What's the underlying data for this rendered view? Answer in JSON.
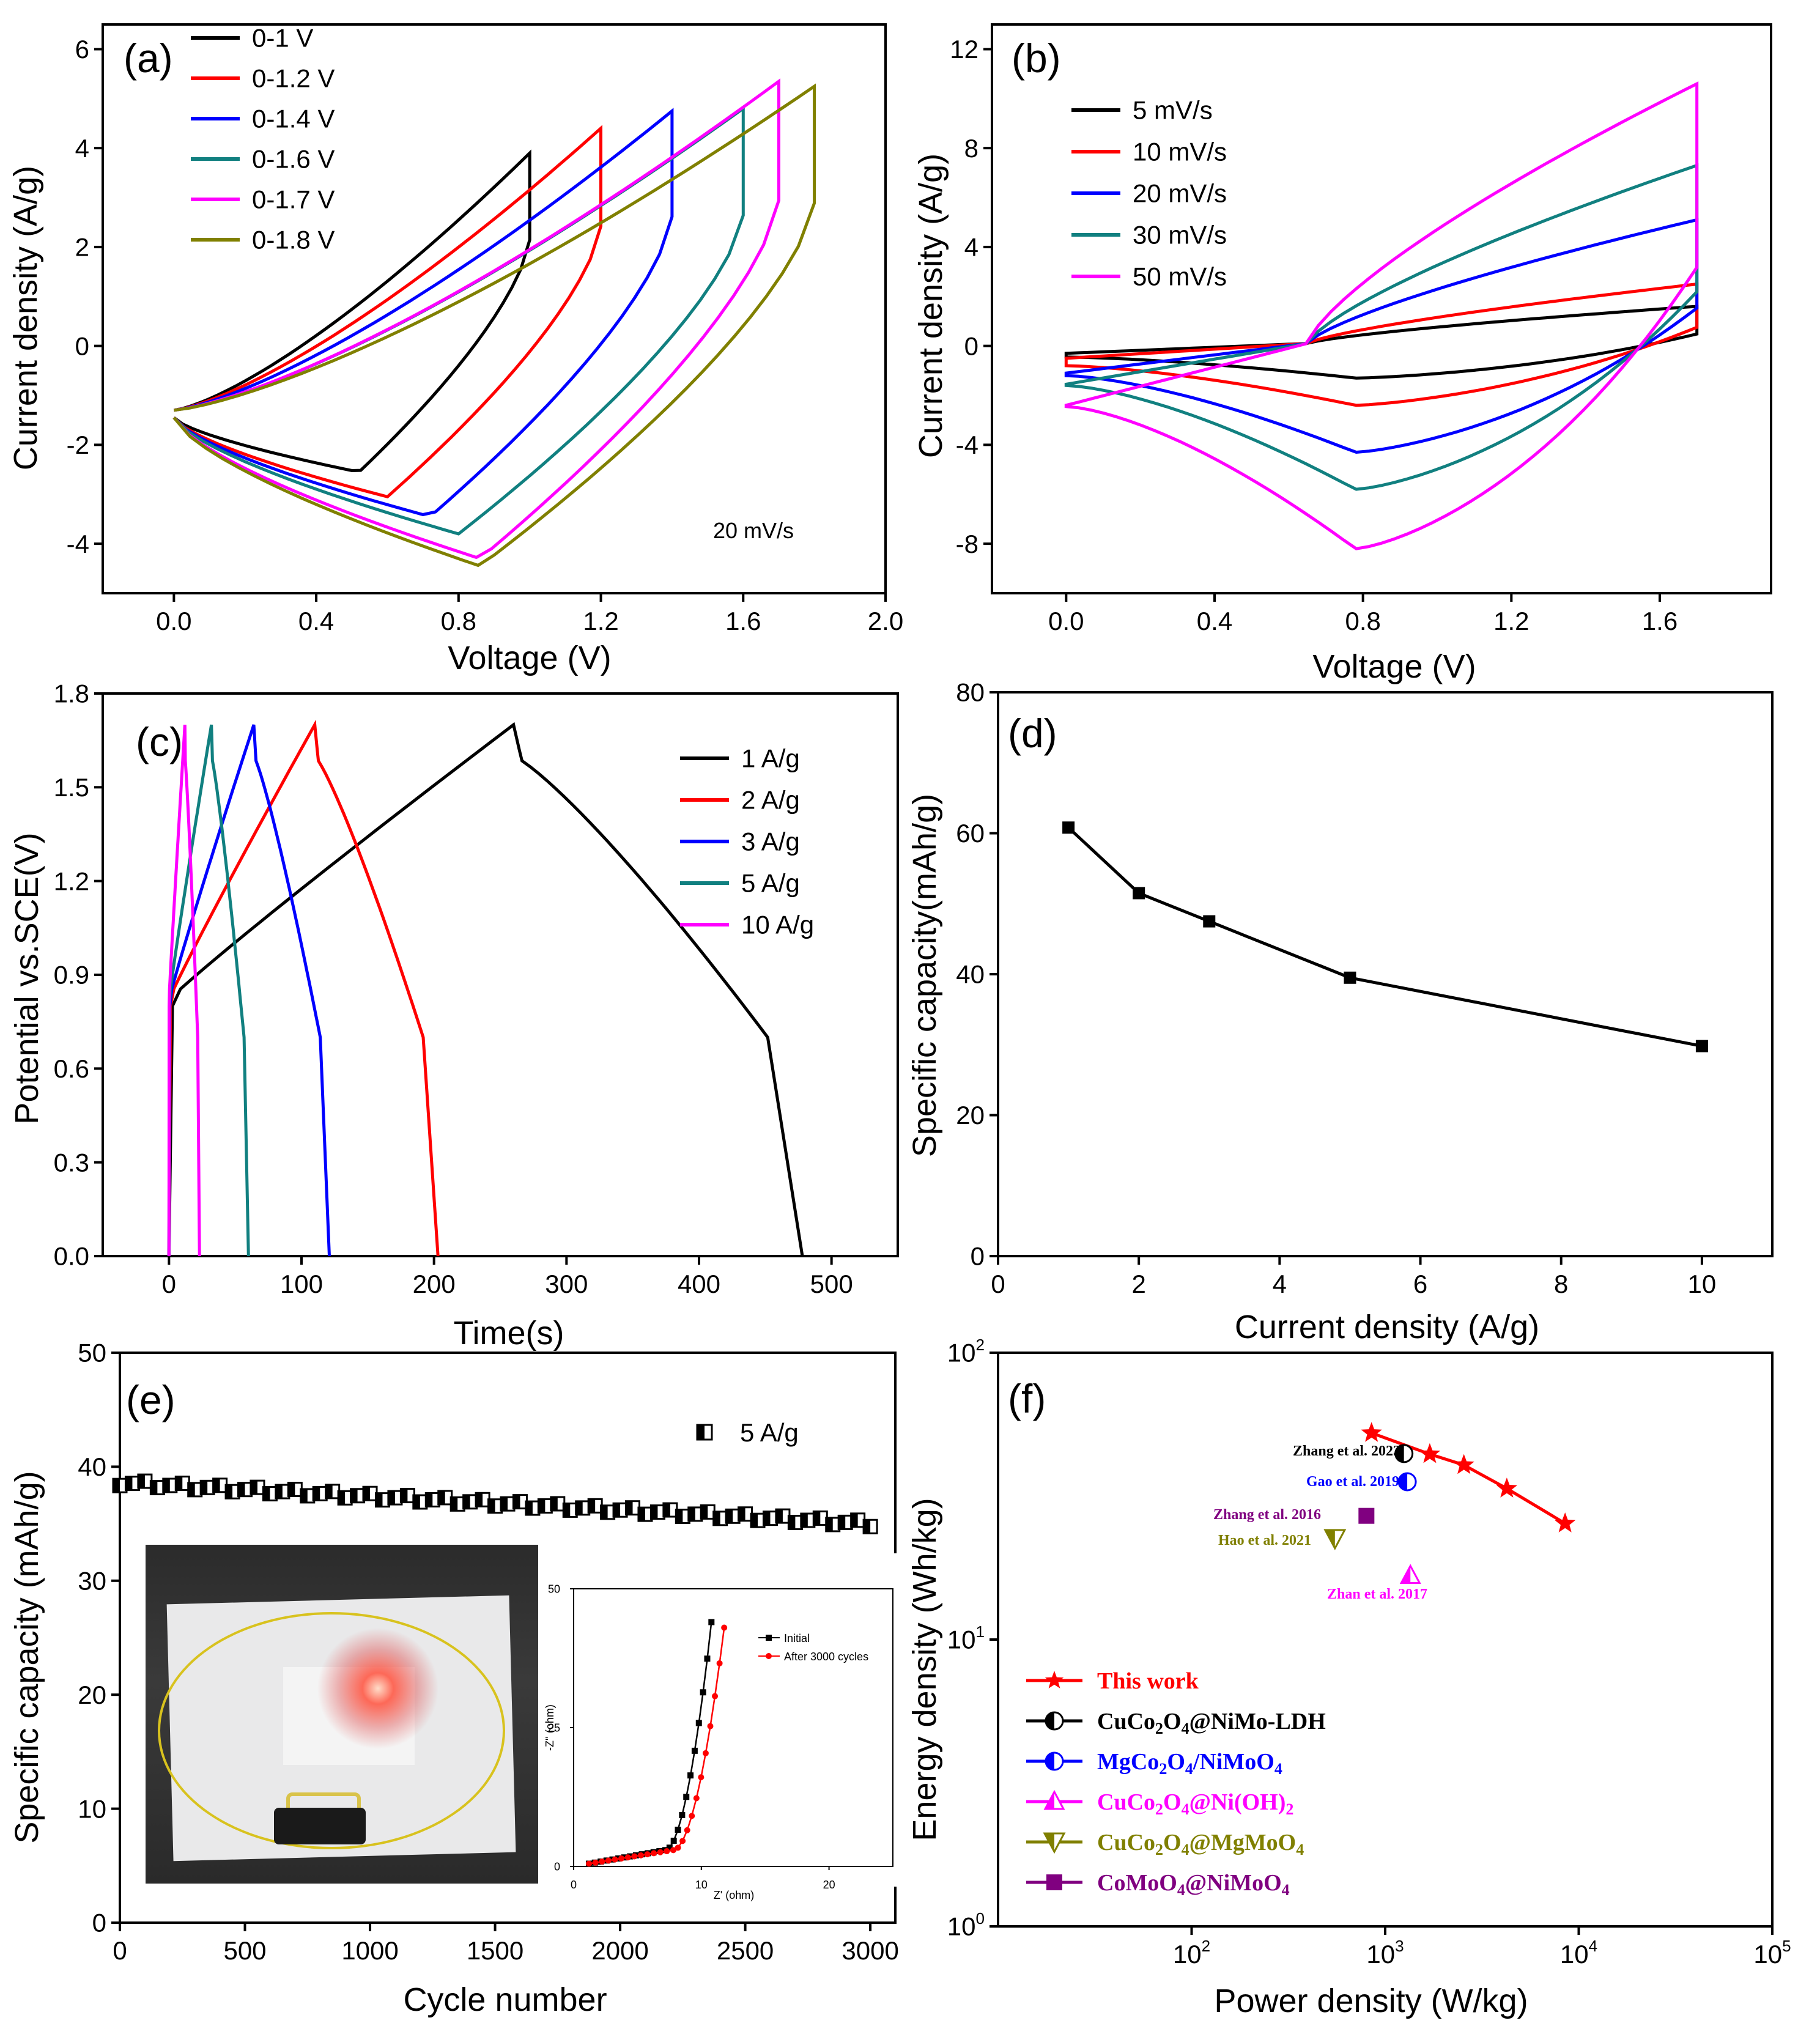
{
  "figure": {
    "panels": {
      "a": {
        "tag": "(a)",
        "xlabel": "Voltage (V)",
        "ylabel": "Current density (A/g)",
        "annotation": "20 mV/s",
        "xticks": [
          "0.0",
          "0.4",
          "0.8",
          "1.2",
          "1.6",
          "2.0"
        ],
        "yticks": [
          "-4",
          "-2",
          "0",
          "2",
          "4",
          "6"
        ],
        "legend": [
          "0-1 V",
          "0-1.2 V",
          "0-1.4 V",
          "0-1.6 V",
          "0-1.7 V",
          "0-1.8 V"
        ]
      },
      "b": {
        "tag": "(b)",
        "xlabel": "Voltage (V)",
        "ylabel": "Current density (A/g)",
        "xticks": [
          "0.0",
          "0.4",
          "0.8",
          "1.2",
          "1.6"
        ],
        "yticks": [
          "-8",
          "-4",
          "0",
          "4",
          "8",
          "12"
        ],
        "legend": [
          "5 mV/s",
          "10 mV/s",
          "20 mV/s",
          "30 mV/s",
          "50 mV/s"
        ]
      },
      "c": {
        "tag": "(c)",
        "xlabel": "Time(s)",
        "ylabel": "Potential vs.SCE(V)",
        "xticks": [
          "0",
          "100",
          "200",
          "300",
          "400",
          "500"
        ],
        "yticks": [
          "0.0",
          "0.3",
          "0.6",
          "0.9",
          "1.2",
          "1.5",
          "1.8"
        ],
        "legend": [
          "1 A/g",
          "2 A/g",
          "3 A/g",
          "5 A/g",
          "10 A/g"
        ]
      },
      "d": {
        "tag": "(d)",
        "xlabel": "Current density (A/g)",
        "ylabel": "Specific capacity(mAh/g)",
        "xticks": [
          "0",
          "2",
          "4",
          "6",
          "8",
          "10"
        ],
        "yticks": [
          "0",
          "20",
          "40",
          "60",
          "80"
        ]
      },
      "e": {
        "tag": "(e)",
        "xlabel": "Cycle number",
        "ylabel": "Specific capacity (mAh/g)",
        "xticks": [
          "0",
          "500",
          "1000",
          "1500",
          "2000",
          "2500",
          "3000"
        ],
        "yticks": [
          "0",
          "10",
          "20",
          "30",
          "40",
          "50"
        ],
        "legend": [
          "5 A/g"
        ],
        "inset": {
          "xlabel": "Z' (ohm)",
          "ylabel": "-Z'' (ohm)",
          "xticks": [
            "0",
            "10",
            "20"
          ],
          "yticks": [
            "0",
            "25",
            "50"
          ],
          "legend": [
            "Initial",
            "After 3000 cycles"
          ]
        }
      },
      "f": {
        "tag": "(f)",
        "xlabel": "Power density (W/kg)",
        "ylabel": "Energy density (Wh/kg)",
        "xticks": [
          {
            "b": "10",
            "e": "2"
          },
          {
            "b": "10",
            "e": "3"
          },
          {
            "b": "10",
            "e": "4"
          },
          {
            "b": "10",
            "e": "5"
          }
        ],
        "yticks": [
          {
            "b": "10",
            "e": "0"
          },
          {
            "b": "10",
            "e": "1"
          },
          {
            "b": "10",
            "e": "2"
          }
        ],
        "annotations": [
          "Zhang et al. 2023",
          "Gao et al. 2019",
          "Zhang et al. 2016",
          "Hao et al. 2021",
          "Zhan et al. 2017"
        ],
        "legend": [
          "This work",
          "CuCo2O4@NiMo-LDH",
          "MgCo2O4/NiMoO4",
          "CuCo2O4@Ni(OH)2",
          "CuCo2O4@MgMoO4",
          "CoMoO4@NiMoO4"
        ]
      }
    }
  },
  "colors": {
    "black": "#000000",
    "red": "#ff0000",
    "blue": "#0000ff",
    "teal": "#118080",
    "magenta": "#ff00ff",
    "olive": "#808000",
    "purple": "#800080"
  },
  "chart_data": [
    {
      "panel": "a",
      "type": "line",
      "xlim": [
        -0.2,
        2.0
      ],
      "ylim": [
        -5,
        6.5
      ],
      "series": [
        {
          "name": "0-1 V",
          "color": "#000000",
          "vmax": 1.0,
          "imax": 3.9,
          "imin": -2.55,
          "vmin_at": 0.52
        },
        {
          "name": "0-1.2 V",
          "color": "#ff0000",
          "vmax": 1.2,
          "imax": 4.4,
          "imin": -3.05,
          "vmin_at": 0.6
        },
        {
          "name": "0-1.4 V",
          "color": "#0000ff",
          "vmax": 1.4,
          "imax": 4.75,
          "imin": -3.45,
          "vmin_at": 0.72
        },
        {
          "name": "0-1.6 V",
          "color": "#118080",
          "vmax": 1.6,
          "imax": 4.8,
          "imin": -3.8,
          "vmin_at": 0.8
        },
        {
          "name": "0-1.7 V",
          "color": "#ff00ff",
          "vmax": 1.7,
          "imax": 5.35,
          "imin": -4.3,
          "vmin_at": 0.86
        },
        {
          "name": "0-1.8 V",
          "color": "#808000",
          "vmax": 1.8,
          "imax": 5.25,
          "imin": -4.45,
          "vmin_at": 0.86
        }
      ]
    },
    {
      "panel": "b",
      "type": "line",
      "xlim": [
        -0.2,
        1.9
      ],
      "ylim": [
        -10,
        13
      ],
      "series": [
        {
          "name": "5 mV/s",
          "color": "#000000",
          "imax": 1.6,
          "imin": -1.3,
          "start_a": -0.3,
          "start_c": -0.45
        },
        {
          "name": "10 mV/s",
          "color": "#ff0000",
          "imax": 2.5,
          "imin": -2.4,
          "start_a": -0.5,
          "start_c": -0.8
        },
        {
          "name": "20 mV/s",
          "color": "#0000ff",
          "imax": 5.1,
          "imin": -4.3,
          "start_a": -1.1,
          "start_c": -1.2
        },
        {
          "name": "30 mV/s",
          "color": "#118080",
          "imax": 7.3,
          "imin": -5.8,
          "start_a": -1.55,
          "start_c": -1.6
        },
        {
          "name": "50 mV/s",
          "color": "#ff00ff",
          "imax": 10.6,
          "imin": -8.2,
          "start_a": -2.4,
          "start_c": -2.45
        }
      ]
    },
    {
      "panel": "c",
      "type": "line",
      "xlim": [
        -50,
        550
      ],
      "ylim": [
        0,
        1.8
      ],
      "series": [
        {
          "name": "1 A/g",
          "color": "#000000",
          "t_charge": 260,
          "t_end": 478
        },
        {
          "name": "2 A/g",
          "color": "#ff0000",
          "t_charge": 110,
          "t_end": 203
        },
        {
          "name": "3 A/g",
          "color": "#0000ff",
          "t_charge": 64,
          "t_end": 121
        },
        {
          "name": "5 A/g",
          "color": "#118080",
          "t_charge": 32,
          "t_end": 60
        },
        {
          "name": "10 A/g",
          "color": "#ff00ff",
          "t_charge": 12,
          "t_end": 23
        }
      ]
    },
    {
      "panel": "d",
      "type": "line",
      "xlim": [
        0,
        11
      ],
      "ylim": [
        0,
        80
      ],
      "x": [
        1,
        2,
        3,
        5,
        10
      ],
      "values": [
        60.8,
        51.5,
        47.5,
        39.5,
        29.8
      ]
    },
    {
      "panel": "e",
      "type": "scatter",
      "xlim": [
        0,
        3100
      ],
      "ylim": [
        0,
        50
      ],
      "series": [
        {
          "name": "5 A/g",
          "start": 38.6,
          "end": 35.0,
          "step": 50,
          "count": 61
        }
      ]
    },
    {
      "panel": "e-inset",
      "type": "line",
      "xlim": [
        0,
        25
      ],
      "ylim": [
        0,
        50
      ],
      "series": [
        {
          "name": "Initial",
          "color": "#000000",
          "x_end": 10.8,
          "y_end": 44
        },
        {
          "name": "After 3000 cycles",
          "color": "#ff0000",
          "x_end": 11.8,
          "y_end": 43
        }
      ]
    },
    {
      "panel": "f",
      "type": "scatter",
      "log": true,
      "xlim": [
        10,
        100000
      ],
      "ylim": [
        1,
        100
      ],
      "series": [
        {
          "name": "This work",
          "color": "#ff0000",
          "x": [
            850,
            1700,
            2550,
            4250,
            8500
          ],
          "values": [
            52.5,
            44.3,
            40.6,
            33.6,
            25.4
          ]
        },
        {
          "name": "CuCo2O4@NiMo-LDH",
          "color": "#000000",
          "x": [
            1250
          ],
          "values": [
            44.5
          ]
        },
        {
          "name": "MgCo2O4/NiMoO4",
          "color": "#0000ff",
          "x": [
            1300
          ],
          "values": [
            35.5
          ]
        },
        {
          "name": "CuCo2O4@Ni(OH)2",
          "color": "#ff00ff",
          "x": [
            1350
          ],
          "values": [
            16.7
          ]
        },
        {
          "name": "CuCo2O4@MgMoO4",
          "color": "#808000",
          "x": [
            550
          ],
          "values": [
            22.5
          ]
        },
        {
          "name": "CoMoO4@NiMoO4",
          "color": "#800080",
          "x": [
            800
          ],
          "values": [
            27.0
          ]
        }
      ]
    }
  ]
}
